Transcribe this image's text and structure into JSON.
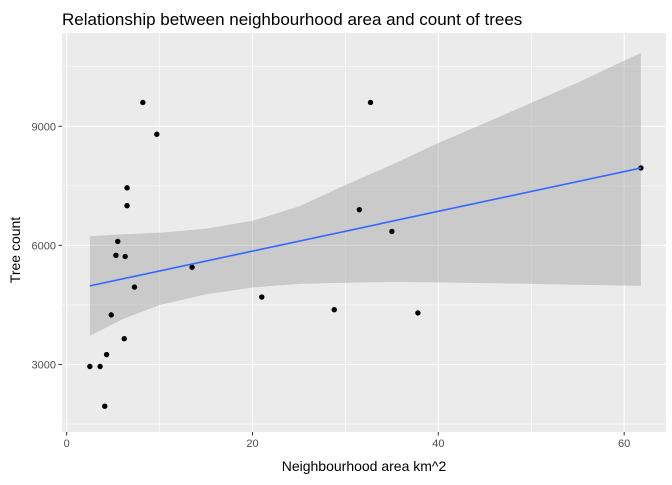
{
  "chart_data": {
    "type": "scatter",
    "title": "Relationship between neighbourhood area and count of trees",
    "xlabel": "Neighbourhood area km^2",
    "ylabel": "Tree count",
    "xlim": [
      -0.5,
      64.5
    ],
    "ylim": [
      1300,
      11350
    ],
    "x_ticks": [
      0,
      20,
      40,
      60
    ],
    "x_tick_labels": [
      "0",
      "20",
      "40",
      "60"
    ],
    "y_ticks": [
      3000,
      6000,
      9000
    ],
    "y_tick_labels": [
      "3000",
      "6000",
      "9000"
    ],
    "grid": true,
    "legend": "none",
    "points": [
      {
        "x": 2.5,
        "y": 2950
      },
      {
        "x": 3.6,
        "y": 2950
      },
      {
        "x": 4.1,
        "y": 1950
      },
      {
        "x": 4.3,
        "y": 3250
      },
      {
        "x": 4.8,
        "y": 4250
      },
      {
        "x": 5.3,
        "y": 5750
      },
      {
        "x": 5.5,
        "y": 6100
      },
      {
        "x": 6.2,
        "y": 3650
      },
      {
        "x": 6.3,
        "y": 5720
      },
      {
        "x": 6.5,
        "y": 7000
      },
      {
        "x": 6.5,
        "y": 7450
      },
      {
        "x": 7.3,
        "y": 4950
      },
      {
        "x": 8.2,
        "y": 9600
      },
      {
        "x": 9.7,
        "y": 8800
      },
      {
        "x": 13.5,
        "y": 5450
      },
      {
        "x": 21.0,
        "y": 4700
      },
      {
        "x": 28.8,
        "y": 4380
      },
      {
        "x": 31.5,
        "y": 6900
      },
      {
        "x": 32.7,
        "y": 9600
      },
      {
        "x": 35.0,
        "y": 6350
      },
      {
        "x": 37.8,
        "y": 4300
      },
      {
        "x": 61.8,
        "y": 7950
      }
    ],
    "trend_line": {
      "method": "linear",
      "x": [
        2.5,
        61.8
      ],
      "y": [
        4980,
        7950
      ]
    },
    "confidence_band": {
      "x": [
        2.5,
        6,
        10,
        15,
        20,
        25,
        30,
        35,
        40,
        45,
        50,
        55,
        61.8
      ],
      "lower": [
        3720,
        4140,
        4500,
        4770,
        4940,
        5030,
        5060,
        5080,
        5070,
        5050,
        5030,
        5010,
        4980
      ],
      "upper": [
        6230,
        6280,
        6320,
        6420,
        6620,
        6980,
        7520,
        8030,
        8580,
        9080,
        9590,
        10100,
        10850
      ]
    },
    "colors": {
      "background": "#EBEBEB",
      "grid": "#FFFFFF",
      "points": "#000000",
      "trend_line": "#3366FF",
      "confidence_band": "#999999"
    }
  }
}
